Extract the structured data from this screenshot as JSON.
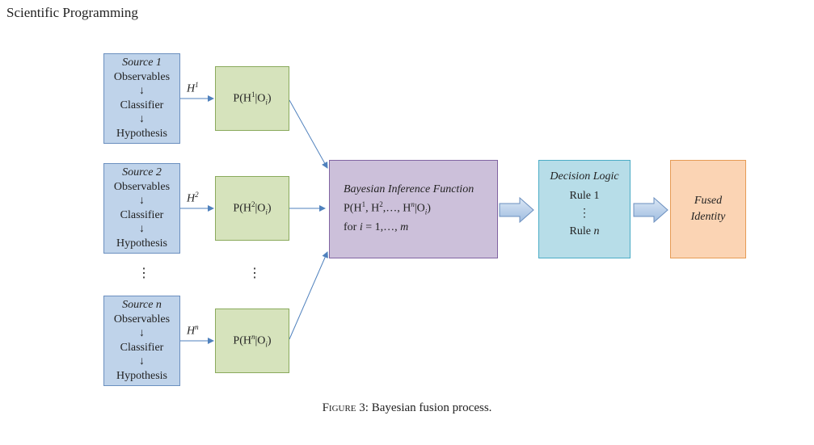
{
  "header": {
    "journal": "Scientific Programming"
  },
  "sources": [
    {
      "title": "Source 1",
      "line1": "Observables",
      "arrow1": "↓",
      "line2": "Classifier",
      "arrow2": "↓",
      "line3": "Hypothesis"
    },
    {
      "title": "Source 2",
      "line1": "Observables",
      "arrow1": "↓",
      "line2": "Classifier",
      "arrow2": "↓",
      "line3": "Hypothesis"
    },
    {
      "title": "Source n",
      "line1": "Observables",
      "arrow1": "↓",
      "line2": "Classifier",
      "arrow2": "↓",
      "line3": "Hypothesis"
    }
  ],
  "hypotheses": [
    {
      "base": "H",
      "sup": "1"
    },
    {
      "base": "H",
      "sup": "2"
    },
    {
      "base": "H",
      "sup": "n"
    }
  ],
  "probabilities": [
    {
      "pre": "P(H",
      "sup": "1",
      "mid": "|O",
      "sub": "i",
      "post": ")"
    },
    {
      "pre": "P(H",
      "sup": "2",
      "mid": "|O",
      "sub": "i",
      "post": ")"
    },
    {
      "pre": "P(H",
      "sup": "n",
      "mid": "|O",
      "sub": "i",
      "post": ")"
    }
  ],
  "ellipsis": "⋮",
  "bayesian": {
    "title": "Bayesian Inference Function",
    "f_pre": "P(H",
    "s1": "1",
    "f_mid1": ", H",
    "s2": "2",
    "f_mid2": ",…, H",
    "s3": "n",
    "f_mid3": "|O",
    "sub": "i",
    "f_post": ")",
    "for_pre": "for ",
    "for_var": "i",
    "for_mid": " = 1,…, ",
    "for_end": "m"
  },
  "decision": {
    "title": "Decision Logic",
    "rule1": "Rule 1",
    "dots": "⋮",
    "rule_pre": "Rule ",
    "rule_var": "n"
  },
  "fused": {
    "line1": "Fused",
    "line2": "Identity"
  },
  "caption": {
    "label": "Figure 3",
    "text": ": Bayesian fusion process."
  },
  "colors": {
    "source": "#bfd3ea",
    "probability": "#d6e3bc",
    "bayesian": "#ccc0da",
    "decision": "#b7dde8",
    "fused": "#fbd4b4",
    "arrow": "#4f81bd"
  }
}
